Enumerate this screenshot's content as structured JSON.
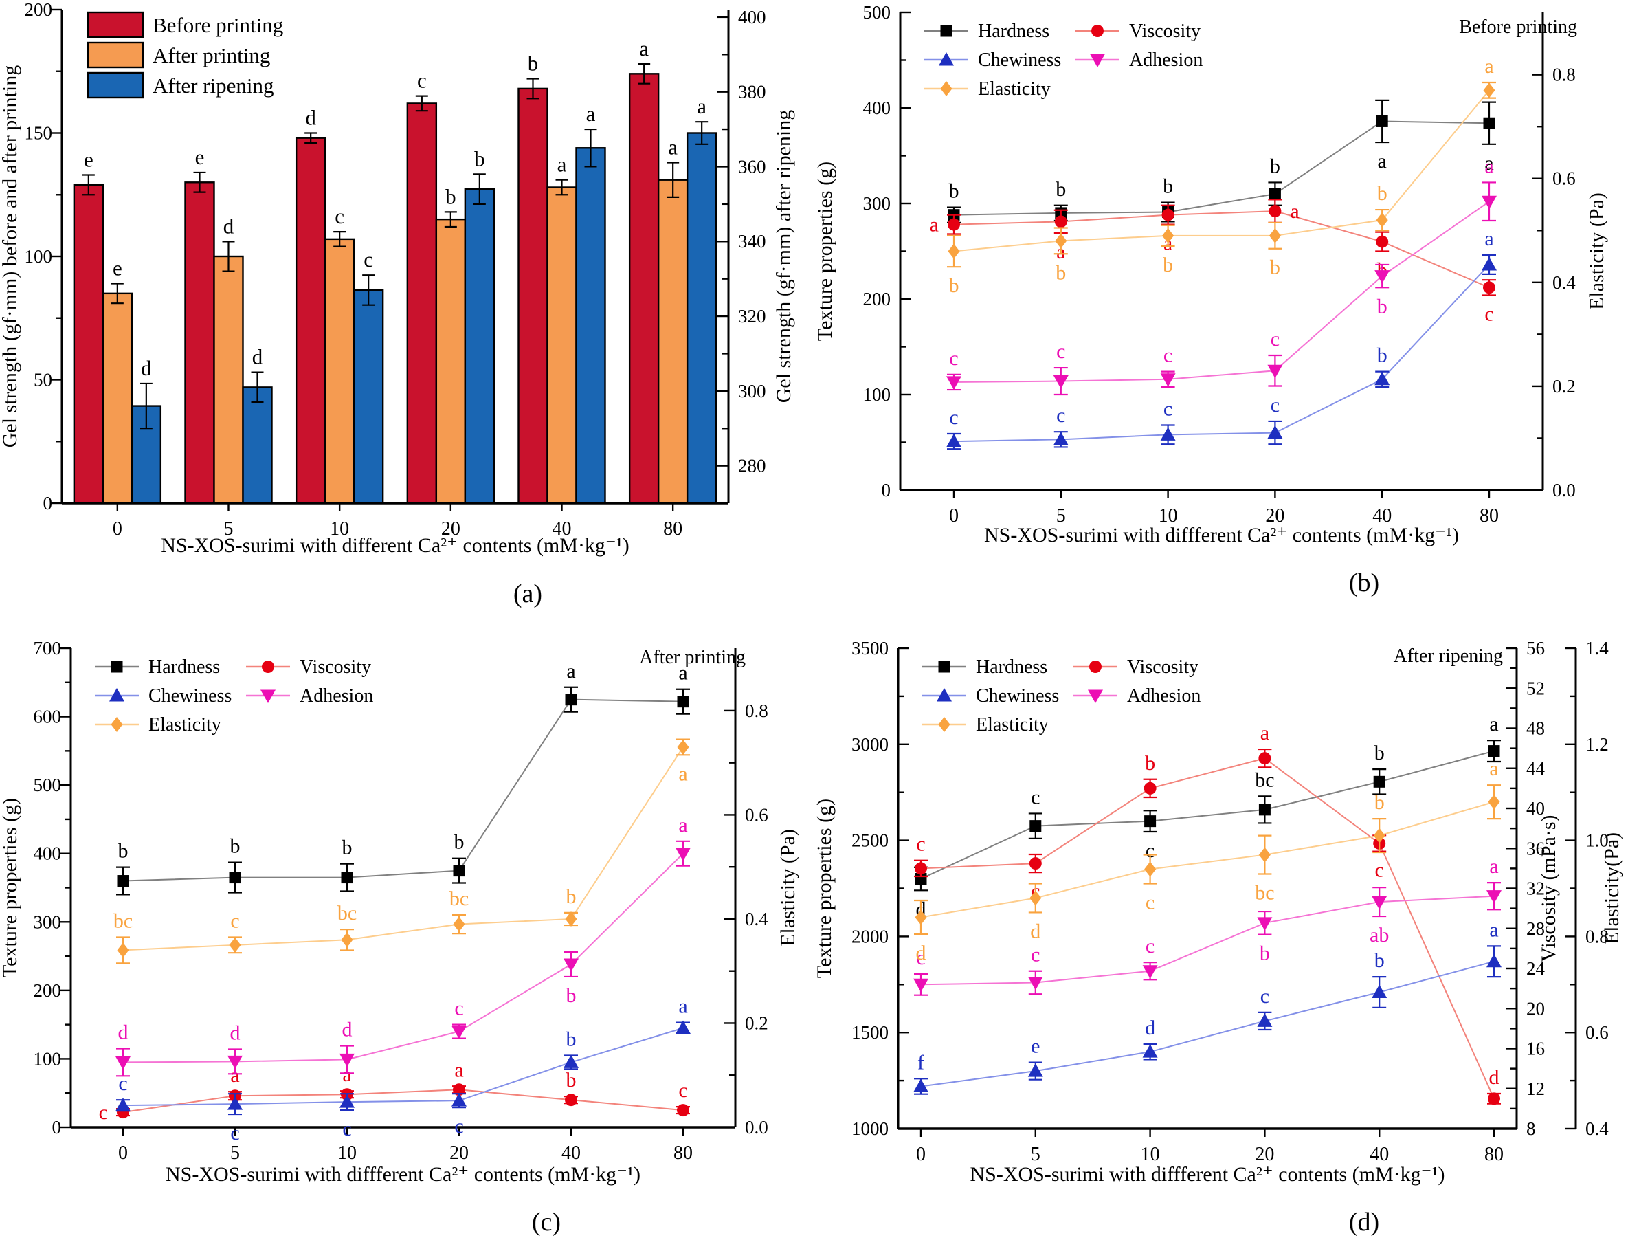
{
  "panel_labels": [
    "(a)",
    "(b)",
    "(c)",
    "(d)"
  ],
  "chart_data": [
    {
      "panel": "a",
      "type": "bar",
      "title": "",
      "categories": [
        "0",
        "5",
        "10",
        "20",
        "40",
        "80"
      ],
      "xlabel": "NS-XOS-surimi with different Ca²⁺ contents (mM·kg⁻¹)",
      "left_axis": {
        "label": "Gel strength (gf·mm) before and after printing",
        "min": 0,
        "max": 200,
        "major_ticks": [
          0,
          50,
          100,
          150,
          200
        ]
      },
      "right_axes": [
        {
          "label": "Gel strength (gf·mm) after ripening",
          "min": 270,
          "max": 402,
          "major_ticks": [
            280,
            300,
            320,
            340,
            360,
            380,
            400
          ]
        }
      ],
      "legend_position": "top-left",
      "series": [
        {
          "name": "Before printing",
          "color": "#c9122d",
          "axis": "left",
          "values": [
            129,
            130,
            148,
            162,
            168,
            174
          ],
          "errors": [
            4,
            4,
            2,
            3,
            4,
            4
          ],
          "letters": [
            "e",
            "e",
            "d",
            "c",
            "b",
            "a"
          ]
        },
        {
          "name": "After printing",
          "color": "#f59b51",
          "axis": "left",
          "values": [
            85,
            100,
            107,
            115,
            128,
            131
          ],
          "errors": [
            4,
            6,
            3,
            3,
            3,
            7
          ],
          "letters": [
            "e",
            "d",
            "c",
            "b",
            "a",
            "a"
          ]
        },
        {
          "name": "After ripening",
          "color": "#1a66b3",
          "axis": "right0",
          "values": [
            296,
            301,
            327,
            354,
            365,
            369
          ],
          "errors": [
            6,
            4,
            4,
            4,
            5,
            3
          ],
          "letters": [
            "d",
            "d",
            "c",
            "b",
            "a",
            "a"
          ]
        }
      ]
    },
    {
      "panel": "b",
      "type": "line",
      "title": "Before printing",
      "categories": [
        "0",
        "5",
        "10",
        "20",
        "40",
        "80"
      ],
      "xlabel": "NS-XOS-surimi with diffferent Ca²⁺ contents (mM·kg⁻¹)",
      "left_axis": {
        "label": "Texture properties (g)",
        "min": 0,
        "max": 500,
        "major_ticks": [
          0,
          100,
          200,
          300,
          400,
          500
        ]
      },
      "right_axes": [
        {
          "label": "Elasticity  (Pa)",
          "min": 0,
          "max": 0.92,
          "major_ticks": [
            0.0,
            0.2,
            0.4,
            0.6,
            0.8
          ],
          "decimals": 1
        }
      ],
      "legend_position": "top-left",
      "series": [
        {
          "name": "Hardness",
          "marker": "square",
          "color": "#000000",
          "line_color": "#808080",
          "axis": "left",
          "values": [
            288,
            290,
            291,
            310,
            386,
            384
          ],
          "errors": [
            8,
            8,
            10,
            12,
            22,
            22
          ],
          "letters": [
            "b",
            "b",
            "b",
            "b",
            "a",
            "a"
          ],
          "letter_pos": [
            "A",
            "A",
            "A",
            "A",
            "B",
            "B"
          ]
        },
        {
          "name": "Viscosity",
          "marker": "circle",
          "color": "#e60012",
          "line_color": "#f3837b",
          "axis": "left",
          "values": [
            278,
            281,
            288,
            292,
            260,
            212
          ],
          "errors": [
            10,
            12,
            10,
            12,
            10,
            8
          ],
          "letters": [
            "a",
            "a",
            "a",
            "a",
            "b",
            "c"
          ],
          "letter_pos": [
            "L",
            "B",
            "B",
            "R",
            "B",
            "B"
          ]
        },
        {
          "name": "Chewiness",
          "marker": "triangle-up",
          "color": "#1e2fc0",
          "line_color": "#8390e8",
          "axis": "left",
          "values": [
            51,
            53,
            58,
            60,
            116,
            236
          ],
          "errors": [
            8,
            8,
            10,
            12,
            8,
            10
          ],
          "letters": [
            "c",
            "c",
            "c",
            "c",
            "b",
            "a"
          ],
          "letter_pos": [
            "A",
            "A",
            "A",
            "A",
            "A",
            "A"
          ]
        },
        {
          "name": "Adhesion",
          "marker": "triangle-down",
          "color": "#ec0fb4",
          "line_color": "#f573d4",
          "axis": "left",
          "values": [
            113,
            114,
            116,
            125,
            224,
            302
          ],
          "errors": [
            8,
            14,
            8,
            16,
            12,
            20
          ],
          "letters": [
            "c",
            "c",
            "c",
            "c",
            "b",
            "a"
          ],
          "letter_pos": [
            "A",
            "A",
            "A",
            "A",
            "B",
            "A"
          ]
        },
        {
          "name": "Elasticity",
          "marker": "diamond",
          "color": "#f9a33f",
          "line_color": "#fdcd8d",
          "axis": "right0",
          "values": [
            0.46,
            0.48,
            0.49,
            0.49,
            0.52,
            0.77
          ],
          "errors": [
            0.03,
            0.025,
            0.02,
            0.025,
            0.02,
            0.015
          ],
          "letters": [
            "b",
            "b",
            "b",
            "b",
            "b",
            "a"
          ],
          "letter_pos": [
            "B",
            "B",
            "B",
            "B",
            "A",
            "A"
          ]
        }
      ]
    },
    {
      "panel": "c",
      "type": "line",
      "title": "After printing",
      "categories": [
        "0",
        "5",
        "10",
        "20",
        "40",
        "80"
      ],
      "xlabel": "NS-XOS-surimi with diffferent Ca²⁺ contents (mM·kg⁻¹)",
      "left_axis": {
        "label": "Texture properties (g)",
        "min": 0,
        "max": 700,
        "major_ticks": [
          0,
          100,
          200,
          300,
          400,
          500,
          600,
          700
        ]
      },
      "right_axes": [
        {
          "label": "Elasticity  (Pa)",
          "min": 0,
          "max": 0.92,
          "major_ticks": [
            0.0,
            0.2,
            0.4,
            0.6,
            0.8
          ],
          "decimals": 1
        }
      ],
      "legend_position": "top-left",
      "series": [
        {
          "name": "Hardness",
          "marker": "square",
          "color": "#000000",
          "line_color": "#808080",
          "axis": "left",
          "values": [
            360,
            365,
            365,
            375,
            625,
            622
          ],
          "errors": [
            20,
            22,
            20,
            18,
            18,
            18
          ],
          "letters": [
            "b",
            "b",
            "b",
            "b",
            "a",
            "a"
          ],
          "letter_pos": [
            "A",
            "A",
            "A",
            "A",
            "A",
            "A"
          ]
        },
        {
          "name": "Viscosity",
          "marker": "circle",
          "color": "#e60012",
          "line_color": "#f3837b",
          "axis": "left",
          "values": [
            22,
            46,
            48,
            55,
            40,
            25
          ],
          "errors": [
            5,
            6,
            5,
            5,
            5,
            5
          ],
          "letters": [
            "c",
            "a",
            "a",
            "a",
            "b",
            "c"
          ],
          "letter_pos": [
            "L",
            "A",
            "A",
            "A",
            "A",
            "A"
          ]
        },
        {
          "name": "Chewiness",
          "marker": "triangle-up",
          "color": "#1e2fc0",
          "line_color": "#8390e8",
          "axis": "left",
          "values": [
            32,
            34,
            37,
            39,
            95,
            145
          ],
          "errors": [
            8,
            15,
            12,
            10,
            10,
            8
          ],
          "letters": [
            "c",
            "c",
            "c",
            "c",
            "b",
            "a"
          ],
          "letter_pos": [
            "A",
            "B",
            "B",
            "B",
            "A",
            "A"
          ]
        },
        {
          "name": "Adhesion",
          "marker": "triangle-down",
          "color": "#ec0fb4",
          "line_color": "#f573d4",
          "axis": "left",
          "values": [
            95,
            96,
            99,
            140,
            238,
            400
          ],
          "errors": [
            20,
            18,
            20,
            10,
            18,
            18
          ],
          "letters": [
            "d",
            "d",
            "d",
            "c",
            "b",
            "a"
          ],
          "letter_pos": [
            "A",
            "A",
            "A",
            "A",
            "B",
            "A"
          ]
        },
        {
          "name": "Elasticity",
          "marker": "diamond",
          "color": "#f9a33f",
          "line_color": "#fdcd8d",
          "axis": "right0",
          "values": [
            0.34,
            0.35,
            0.36,
            0.39,
            0.4,
            0.73
          ],
          "errors": [
            0.025,
            0.015,
            0.02,
            0.018,
            0.012,
            0.015
          ],
          "letters": [
            "bc",
            "c",
            "bc",
            "bc",
            "b",
            "a"
          ],
          "letter_pos": [
            "A",
            "A",
            "A",
            "A",
            "A",
            "B"
          ]
        }
      ]
    },
    {
      "panel": "d",
      "type": "line",
      "title": "After ripening",
      "categories": [
        "0",
        "5",
        "10",
        "20",
        "40",
        "80"
      ],
      "xlabel": "NS-XOS-surimi with diffferent Ca²⁺ contents (mM·kg⁻¹)",
      "left_axis": {
        "label": "Texture properties (g)",
        "min": 1000,
        "max": 3500,
        "major_ticks": [
          1000,
          1500,
          2000,
          2500,
          3000,
          3500
        ]
      },
      "right_axes": [
        {
          "label": "Viscosity (mPa·s)",
          "min": 8,
          "max": 56,
          "major_ticks": [
            8,
            12,
            16,
            20,
            24,
            28,
            32,
            36,
            40,
            44,
            48,
            52,
            56
          ]
        },
        {
          "label": "Elasticity(Pa)",
          "min": 0.4,
          "max": 1.4,
          "major_ticks": [
            0.4,
            0.6,
            0.8,
            1.0,
            1.2,
            1.4
          ],
          "decimals": 1
        }
      ],
      "legend_position": "top-left",
      "series": [
        {
          "name": "Hardness",
          "marker": "square",
          "color": "#000000",
          "line_color": "#808080",
          "axis": "left",
          "values": [
            2300,
            2575,
            2600,
            2660,
            2805,
            2965
          ],
          "errors": [
            60,
            65,
            55,
            70,
            65,
            55
          ],
          "letters": [
            "d",
            "c",
            "c",
            "bc",
            "b",
            "a"
          ],
          "letter_pos": [
            "B",
            "A",
            "B",
            "A",
            "A",
            "A"
          ]
        },
        {
          "name": "Viscosity",
          "marker": "circle",
          "color": "#e60012",
          "line_color": "#f3837b",
          "axis": "right0",
          "values": [
            34,
            34.5,
            42,
            45,
            36.5,
            11
          ],
          "errors": [
            0.8,
            0.9,
            0.9,
            0.9,
            0.8,
            0.5
          ],
          "letters": [
            "c",
            "c",
            "b",
            "a",
            "c",
            "d"
          ],
          "letter_pos": [
            "A",
            "B",
            "A",
            "A",
            "B",
            "A"
          ]
        },
        {
          "name": "Chewiness",
          "marker": "triangle-up",
          "color": "#1e2fc0",
          "line_color": "#8390e8",
          "axis": "left",
          "values": [
            1220,
            1300,
            1400,
            1560,
            1710,
            1870
          ],
          "errors": [
            40,
            45,
            40,
            45,
            80,
            80
          ],
          "letters": [
            "f",
            "e",
            "d",
            "c",
            "b",
            "a"
          ],
          "letter_pos": [
            "A",
            "A",
            "A",
            "A",
            "A",
            "A"
          ]
        },
        {
          "name": "Adhesion",
          "marker": "triangle-down",
          "color": "#ec0fb4",
          "line_color": "#f573d4",
          "axis": "left",
          "values": [
            1750,
            1760,
            1820,
            2070,
            2180,
            2210
          ],
          "errors": [
            55,
            60,
            45,
            60,
            75,
            70
          ],
          "letters": [
            "c",
            "c",
            "c",
            "b",
            "ab",
            "a"
          ],
          "letter_pos": [
            "A",
            "A",
            "A",
            "B",
            "B",
            "A"
          ]
        },
        {
          "name": "Elasticity",
          "marker": "diamond",
          "color": "#f9a33f",
          "line_color": "#fdcd8d",
          "axis": "right1",
          "values": [
            0.84,
            0.88,
            0.94,
            0.97,
            1.01,
            1.08
          ],
          "errors": [
            0.035,
            0.03,
            0.03,
            0.04,
            0.035,
            0.035
          ],
          "letters": [
            "d",
            "d",
            "c",
            "bc",
            "b",
            "a"
          ],
          "letter_pos": [
            "B",
            "B",
            "B",
            "B",
            "A",
            "A"
          ]
        }
      ]
    }
  ]
}
